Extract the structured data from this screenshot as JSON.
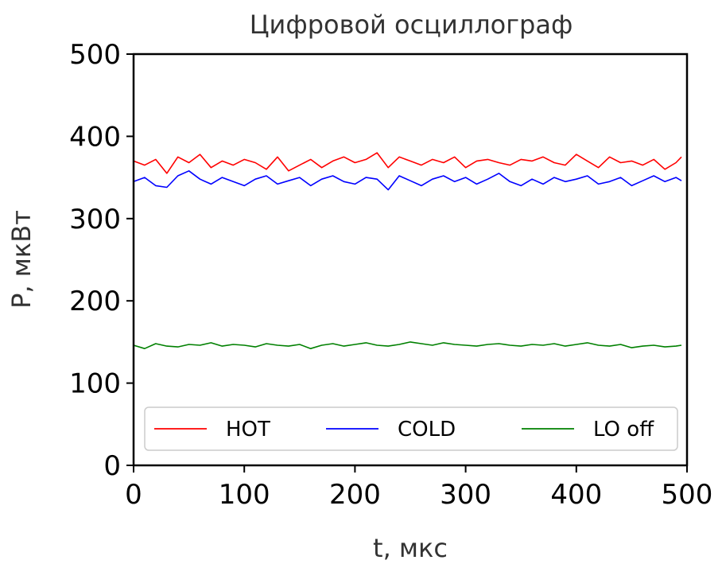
{
  "chart_data": {
    "type": "line",
    "title": "Цифровой осциллограф",
    "xlabel": "t, мкс",
    "ylabel": "P, мкВт",
    "xlim": [
      0,
      500
    ],
    "ylim": [
      0,
      500
    ],
    "xticks": [
      "0",
      "100",
      "200",
      "300",
      "400",
      "500"
    ],
    "yticks": [
      "0",
      "100",
      "200",
      "300",
      "400",
      "500"
    ],
    "grid": false,
    "legend_position": "bottom",
    "series": [
      {
        "name": "HOT",
        "color": "#ff0000",
        "x": [
          0,
          10,
          20,
          30,
          40,
          50,
          60,
          70,
          80,
          90,
          100,
          110,
          120,
          130,
          140,
          150,
          160,
          170,
          180,
          190,
          200,
          210,
          220,
          230,
          240,
          250,
          260,
          270,
          280,
          290,
          300,
          310,
          320,
          330,
          340,
          350,
          360,
          370,
          380,
          390,
          400,
          410,
          420,
          430,
          440,
          450,
          460,
          470,
          480,
          490,
          495
        ],
        "y": [
          370,
          365,
          372,
          355,
          375,
          368,
          378,
          362,
          370,
          365,
          372,
          368,
          360,
          375,
          358,
          365,
          372,
          362,
          370,
          375,
          368,
          372,
          380,
          362,
          375,
          370,
          365,
          372,
          368,
          375,
          362,
          370,
          372,
          368,
          365,
          372,
          370,
          375,
          368,
          365,
          378,
          370,
          362,
          375,
          368,
          370,
          365,
          372,
          360,
          368,
          375
        ]
      },
      {
        "name": "COLD",
        "color": "#0000ff",
        "x": [
          0,
          10,
          20,
          30,
          40,
          50,
          60,
          70,
          80,
          90,
          100,
          110,
          120,
          130,
          140,
          150,
          160,
          170,
          180,
          190,
          200,
          210,
          220,
          230,
          240,
          250,
          260,
          270,
          280,
          290,
          300,
          310,
          320,
          330,
          340,
          350,
          360,
          370,
          380,
          390,
          400,
          410,
          420,
          430,
          440,
          450,
          460,
          470,
          480,
          490,
          495
        ],
        "y": [
          345,
          350,
          340,
          338,
          352,
          358,
          348,
          342,
          350,
          345,
          340,
          348,
          352,
          342,
          346,
          350,
          340,
          348,
          352,
          345,
          342,
          350,
          348,
          335,
          352,
          346,
          340,
          348,
          352,
          345,
          350,
          342,
          348,
          355,
          345,
          340,
          348,
          342,
          350,
          345,
          348,
          352,
          342,
          345,
          350,
          340,
          346,
          352,
          345,
          350,
          346
        ]
      },
      {
        "name": "LO off",
        "color": "#008000",
        "x": [
          0,
          10,
          20,
          30,
          40,
          50,
          60,
          70,
          80,
          90,
          100,
          110,
          120,
          130,
          140,
          150,
          160,
          170,
          180,
          190,
          200,
          210,
          220,
          230,
          240,
          250,
          260,
          270,
          280,
          290,
          300,
          310,
          320,
          330,
          340,
          350,
          360,
          370,
          380,
          390,
          400,
          410,
          420,
          430,
          440,
          450,
          460,
          470,
          480,
          490,
          495
        ],
        "y": [
          146,
          142,
          148,
          145,
          144,
          147,
          146,
          149,
          145,
          147,
          146,
          144,
          148,
          146,
          145,
          147,
          142,
          146,
          148,
          145,
          147,
          149,
          146,
          145,
          147,
          150,
          148,
          146,
          149,
          147,
          146,
          145,
          147,
          148,
          146,
          145,
          147,
          146,
          148,
          145,
          147,
          149,
          146,
          145,
          147,
          143,
          145,
          146,
          144,
          145,
          146
        ]
      }
    ]
  }
}
